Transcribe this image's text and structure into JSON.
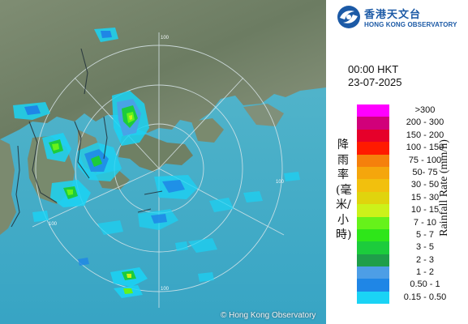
{
  "map": {
    "range_rings": [
      "100",
      "100",
      "100",
      "100"
    ],
    "copyright": "© Hong Kong Observatory"
  },
  "logo": {
    "name_zh": "香港天文台",
    "name_en": "HONG KONG OBSERVATORY"
  },
  "time": {
    "time": "00:00 HKT",
    "date": "23-07-2025"
  },
  "legend": {
    "axis_label_zh": "降雨率(毫米/小時)",
    "axis_label_en": "Rainfall Rate (mm/h)",
    "items": [
      {
        "label": ">300",
        "color": "#ff00ff"
      },
      {
        "label": "200 - 300",
        "color": "#d1007a"
      },
      {
        "label": "150 - 200",
        "color": "#e6002a"
      },
      {
        "label": "100 - 150",
        "color": "#ff1a00"
      },
      {
        "label": "75 - 100",
        "color": "#f5800c"
      },
      {
        "label": "50- 75",
        "color": "#f5a60c"
      },
      {
        "label": "30 - 50",
        "color": "#f2c00d"
      },
      {
        "label": "15 - 30",
        "color": "#e0d40d"
      },
      {
        "label": "10 - 15",
        "color": "#ccf21a"
      },
      {
        "label": "7 - 10",
        "color": "#66f21a"
      },
      {
        "label": "5 - 7",
        "color": "#2ee619"
      },
      {
        "label": "3 - 5",
        "color": "#1ccc3c"
      },
      {
        "label": "2 - 3",
        "color": "#1f9e4a"
      },
      {
        "label": "1 - 2",
        "color": "#4d9ee6"
      },
      {
        "label": "0.50 - 1",
        "color": "#1f86e6"
      },
      {
        "label": "0.15 - 0.50",
        "color": "#1ad3f5"
      }
    ]
  }
}
